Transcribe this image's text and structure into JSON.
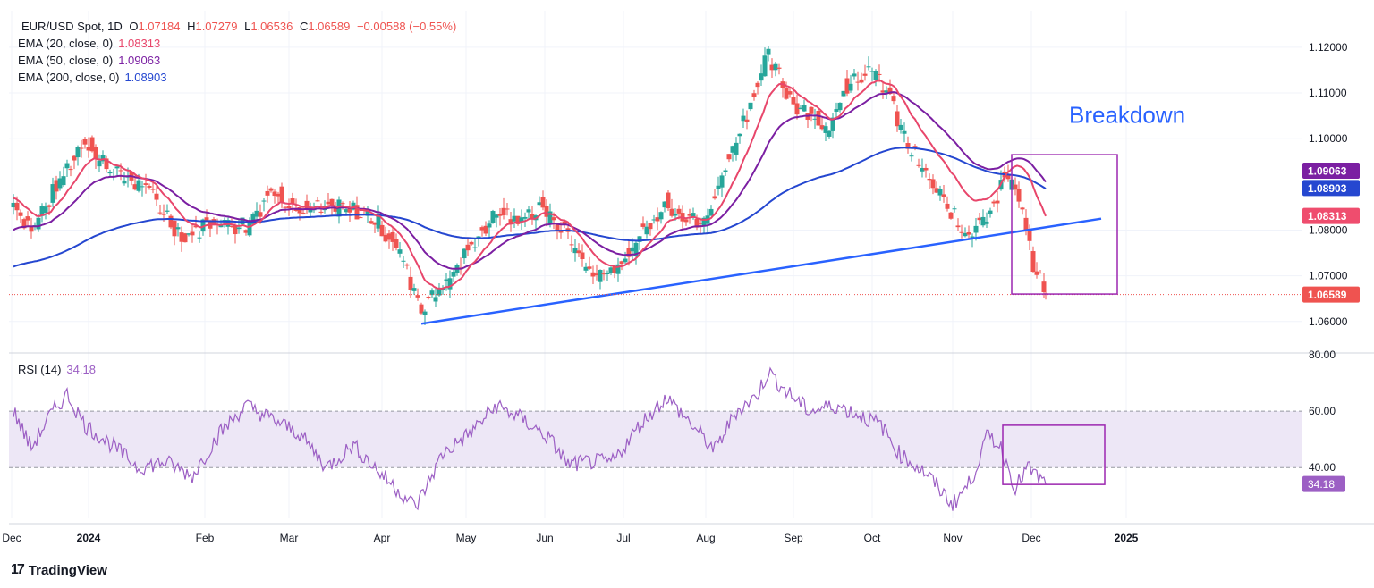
{
  "header": {
    "symbol": "EUR/USD Spot, 1D",
    "open_label": "O",
    "open": "1.07184",
    "high_label": "H",
    "high": "1.07279",
    "low_label": "L",
    "low": "1.06536",
    "close_label": "C",
    "close": "1.06589",
    "change": "−0.00588 (−0.55%)"
  },
  "indicators": {
    "ema20": {
      "label": "EMA (20, close, 0)",
      "value": "1.08313",
      "color": "#e8466b"
    },
    "ema50": {
      "label": "EMA (50, close, 0)",
      "value": "1.09063",
      "color": "#7b1fa2"
    },
    "ema200": {
      "label": "EMA (200, close, 0)",
      "value": "1.08903",
      "color": "#2547d0"
    },
    "rsi": {
      "label": "RSI (14)",
      "value": "34.18",
      "color": "#9c5fc4"
    }
  },
  "annotation": {
    "text": "Breakdown",
    "color": "#2962ff"
  },
  "footer": {
    "brand": "TradingView",
    "mark": "17"
  },
  "colors": {
    "up": "#26a69a",
    "down": "#ef5350",
    "trendline": "#2962ff",
    "box": "#9c27b0",
    "rsi_band": "#ede7f6"
  },
  "chart_data": [
    {
      "type": "candlestick",
      "x_ticks": [
        "Dec",
        "2024",
        "Feb",
        "Mar",
        "Apr",
        "May",
        "Jun",
        "Jul",
        "Aug",
        "Sep",
        "Oct",
        "Nov",
        "Dec",
        "2025"
      ],
      "y_ticks": [
        "1.12000",
        "1.11000",
        "1.10000",
        "1.08000",
        "1.07000",
        "1.06000"
      ],
      "ylim": [
        1.0535,
        1.128
      ],
      "price_labels": [
        "1.09063",
        "1.08903",
        "1.08313",
        "1.06589"
      ],
      "last_close": 1.06589,
      "close_anchors": [
        [
          0,
          1.086
        ],
        [
          10,
          1.08
        ],
        [
          22,
          1.088
        ],
        [
          40,
          1.1
        ],
        [
          46,
          1.096
        ],
        [
          60,
          1.092
        ],
        [
          75,
          1.089
        ],
        [
          95,
          1.078
        ],
        [
          110,
          1.082
        ],
        [
          130,
          1.081
        ],
        [
          145,
          1.089
        ],
        [
          160,
          1.084
        ],
        [
          180,
          1.085
        ],
        [
          200,
          1.083
        ],
        [
          215,
          1.076
        ],
        [
          228,
          1.063
        ],
        [
          235,
          1.066
        ],
        [
          245,
          1.07
        ],
        [
          260,
          1.079
        ],
        [
          272,
          1.084
        ],
        [
          282,
          1.082
        ],
        [
          295,
          1.085
        ],
        [
          310,
          1.079
        ],
        [
          322,
          1.071
        ],
        [
          338,
          1.071
        ],
        [
          352,
          1.08
        ],
        [
          365,
          1.086
        ],
        [
          376,
          1.083
        ],
        [
          386,
          1.081
        ],
        [
          398,
          1.094
        ],
        [
          410,
          1.106
        ],
        [
          422,
          1.118
        ],
        [
          435,
          1.108
        ],
        [
          445,
          1.106
        ],
        [
          455,
          1.101
        ],
        [
          465,
          1.112
        ],
        [
          478,
          1.115
        ],
        [
          488,
          1.111
        ],
        [
          498,
          1.1
        ],
        [
          510,
          1.092
        ],
        [
          520,
          1.086
        ],
        [
          532,
          1.079
        ],
        [
          545,
          1.084
        ],
        [
          555,
          1.092
        ],
        [
          563,
          1.087
        ],
        [
          570,
          1.072
        ],
        [
          577,
          1.06589
        ]
      ],
      "ema20_last": 1.08313,
      "ema50_last": 1.09063,
      "ema200_last": 1.08903
    },
    {
      "type": "line",
      "name": "RSI (14)",
      "y_ticks": [
        "80.00",
        "60.00",
        "40.00"
      ],
      "ylim": [
        22,
        80
      ],
      "band": [
        40,
        60
      ],
      "last_value": "34.18",
      "rsi_anchors": [
        [
          0,
          60
        ],
        [
          10,
          47
        ],
        [
          20,
          58
        ],
        [
          30,
          66
        ],
        [
          40,
          55
        ],
        [
          55,
          48
        ],
        [
          70,
          40
        ],
        [
          85,
          42
        ],
        [
          100,
          37
        ],
        [
          115,
          52
        ],
        [
          130,
          62
        ],
        [
          145,
          57
        ],
        [
          160,
          52
        ],
        [
          175,
          40
        ],
        [
          190,
          48
        ],
        [
          205,
          38
        ],
        [
          225,
          26
        ],
        [
          240,
          45
        ],
        [
          255,
          52
        ],
        [
          270,
          62
        ],
        [
          285,
          57
        ],
        [
          300,
          50
        ],
        [
          310,
          41
        ],
        [
          322,
          42
        ],
        [
          335,
          42
        ],
        [
          350,
          55
        ],
        [
          365,
          65
        ],
        [
          378,
          56
        ],
        [
          392,
          46
        ],
        [
          404,
          60
        ],
        [
          415,
          65
        ],
        [
          422,
          74
        ],
        [
          432,
          67
        ],
        [
          445,
          60
        ],
        [
          460,
          62
        ],
        [
          475,
          58
        ],
        [
          485,
          55
        ],
        [
          495,
          45
        ],
        [
          510,
          38
        ],
        [
          525,
          27
        ],
        [
          535,
          35
        ],
        [
          545,
          52
        ],
        [
          552,
          47
        ],
        [
          560,
          33
        ],
        [
          567,
          40
        ],
        [
          577,
          34
        ]
      ]
    }
  ]
}
